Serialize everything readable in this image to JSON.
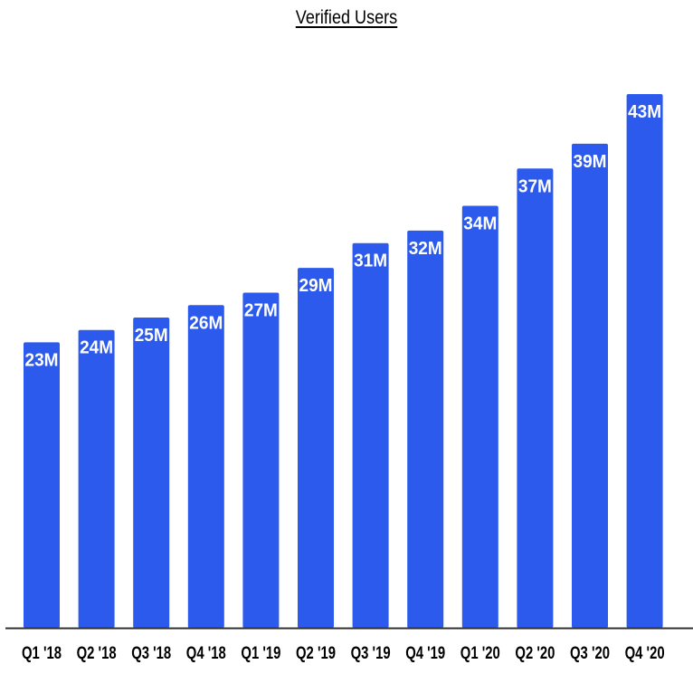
{
  "chart_data": {
    "type": "bar",
    "title": "Verified Users",
    "xlabel": "",
    "ylabel": "",
    "categories": [
      "Q1 '18",
      "Q2 '18",
      "Q3 '18",
      "Q4 '18",
      "Q1 '19",
      "Q2 '19",
      "Q3 '19",
      "Q4 '19",
      "Q1 '20",
      "Q2 '20",
      "Q3 '20",
      "Q4 '20"
    ],
    "values": [
      23,
      24,
      25,
      26,
      27,
      29,
      31,
      32,
      34,
      37,
      39,
      43
    ],
    "data_labels": [
      "23M",
      "24M",
      "25M",
      "26M",
      "27M",
      "29M",
      "31M",
      "32M",
      "34M",
      "37M",
      "39M",
      "43M"
    ],
    "ylim": [
      0,
      43
    ],
    "grid": false,
    "legend": "none",
    "colors": {
      "bar": "#2c5aec",
      "label": "#ffffff",
      "axis": "#333333",
      "text": "#000000"
    }
  }
}
